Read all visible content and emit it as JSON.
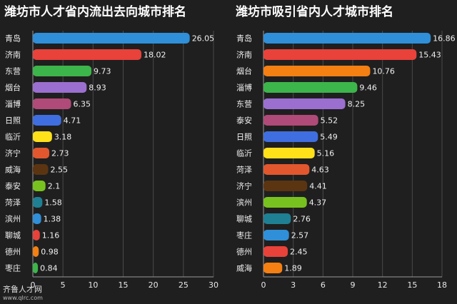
{
  "chart_data": [
    {
      "type": "bar",
      "orientation": "horizontal",
      "title": "潍坊市人才省内流出去向城市排名",
      "categories": [
        "青岛",
        "济南",
        "东营",
        "烟台",
        "淄博",
        "日照",
        "临沂",
        "济宁",
        "威海",
        "泰安",
        "菏泽",
        "滨州",
        "聊城",
        "德州",
        "枣庄"
      ],
      "values": [
        26.05,
        18.02,
        9.73,
        8.93,
        6.35,
        4.71,
        3.18,
        2.73,
        2.55,
        2.1,
        1.58,
        1.38,
        1.16,
        0.98,
        0.84
      ],
      "value_labels": [
        "26.05",
        "18.02",
        "9.73",
        "8.93",
        "6.35",
        "4.71",
        "3.18",
        "2.73",
        "2.55",
        "2.1",
        "1.58",
        "1.38",
        "1.16",
        "0.98",
        "0.84"
      ],
      "colors": [
        "#2f8fd8",
        "#e8423a",
        "#3cb54a",
        "#9b6fcf",
        "#b04a78",
        "#3f6ee0",
        "#ffe11a",
        "#e2572d",
        "#5b3512",
        "#78c21f",
        "#1f7f93",
        "#2f8fd8",
        "#e8423a",
        "#f47f12",
        "#3cb54a"
      ],
      "xlim": [
        0,
        30
      ],
      "xticks": [
        "0",
        "5",
        "10",
        "15",
        "20",
        "25",
        "30"
      ],
      "grid": true
    },
    {
      "type": "bar",
      "orientation": "horizontal",
      "title": "潍坊市吸引省内人才城市排名",
      "categories": [
        "青岛",
        "济南",
        "烟台",
        "淄博",
        "东营",
        "泰安",
        "日照",
        "临沂",
        "菏泽",
        "济宁",
        "滨州",
        "聊城",
        "枣庄",
        "德州",
        "威海"
      ],
      "values": [
        16.86,
        15.43,
        10.76,
        9.46,
        8.25,
        5.52,
        5.49,
        5.16,
        4.63,
        4.41,
        4.37,
        2.76,
        2.57,
        2.45,
        1.89
      ],
      "value_labels": [
        "16.86",
        "15.43",
        "10.76",
        "9.46",
        "8.25",
        "5.52",
        "5.49",
        "5.16",
        "4.63",
        "4.41",
        "4.37",
        "2.76",
        "2.57",
        "2.45",
        "1.89"
      ],
      "colors": [
        "#2f8fd8",
        "#e8423a",
        "#f47f12",
        "#3cb54a",
        "#9b6fcf",
        "#b04a78",
        "#3f6ee0",
        "#ffe11a",
        "#e2572d",
        "#5b3512",
        "#78c21f",
        "#1f7f93",
        "#2f8fd8",
        "#e8423a",
        "#f47f12"
      ],
      "xlim": [
        0,
        18
      ],
      "xticks": [
        "0",
        "3",
        "6",
        "9",
        "12",
        "15",
        "18"
      ],
      "grid": true
    }
  ],
  "watermark": {
    "logo_text": "齐鲁人才网",
    "url": "www.qlrc.com"
  }
}
